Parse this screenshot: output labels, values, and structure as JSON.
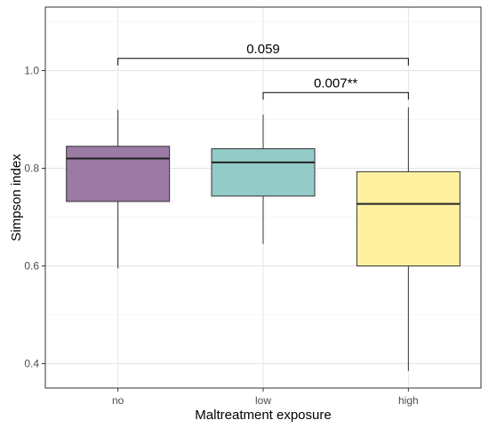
{
  "chart_data": {
    "type": "box",
    "xlabel": "Maltreatment exposure",
    "ylabel": "Simpson index",
    "ylim": [
      0.35,
      1.13
    ],
    "y_ticks": [
      0.4,
      0.6,
      0.8,
      1.0
    ],
    "y_tick_labels": [
      "0.4",
      "0.6",
      "0.8",
      "1.0"
    ],
    "grid": true,
    "categories": [
      "no",
      "low",
      "high"
    ],
    "boxes": [
      {
        "category": "no",
        "min": 0.595,
        "q1": 0.732,
        "median": 0.82,
        "q3": 0.845,
        "max": 0.92,
        "color": "#9b7aa3"
      },
      {
        "category": "low",
        "min": 0.645,
        "q1": 0.743,
        "median": 0.812,
        "q3": 0.84,
        "max": 0.91,
        "color": "#92cbc8"
      },
      {
        "category": "high",
        "min": 0.385,
        "q1": 0.6,
        "median": 0.727,
        "q3": 0.793,
        "max": 0.925,
        "color": "#fff0a0"
      }
    ],
    "annotations": [
      {
        "from": "no",
        "to": "high",
        "y": 1.025,
        "label": "0.059"
      },
      {
        "from": "low",
        "to": "high",
        "y": 0.955,
        "label": "0.007**"
      }
    ]
  }
}
